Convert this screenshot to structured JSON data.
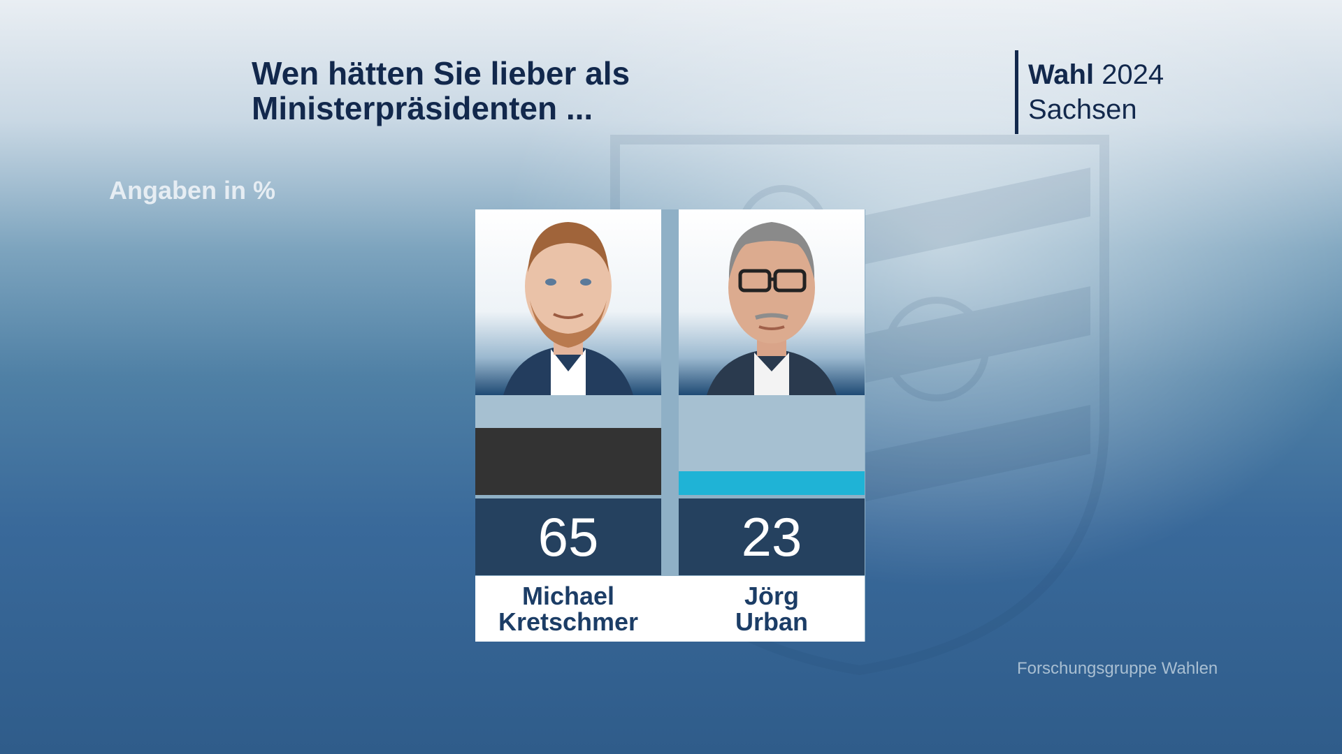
{
  "header": {
    "title_line1": "Wen hätten Sie lieber als",
    "title_line2": "Ministerpräsidenten ...",
    "brand_bold": "Wahl",
    "brand_year": "2024",
    "brand_region": "Sachsen"
  },
  "unit_label": "Angaben in %",
  "source": "Forschungsgruppe Wahlen",
  "colors": {
    "kretschmer_bar": "#333333",
    "urban_bar": "#1fb3d6"
  },
  "chart_data": {
    "type": "bar",
    "categories": [
      "Michael Kretschmer",
      "Jörg Urban"
    ],
    "values": [
      65,
      23
    ],
    "ylim": [
      0,
      100
    ],
    "ylabel": "Angaben in %",
    "candidates": [
      {
        "first": "Michael",
        "last": "Kretschmer",
        "value": 65,
        "value_label": "65",
        "color": "#333333"
      },
      {
        "first": "Jörg",
        "last": "Urban",
        "value": 23,
        "value_label": "23",
        "color": "#1fb3d6"
      }
    ]
  }
}
